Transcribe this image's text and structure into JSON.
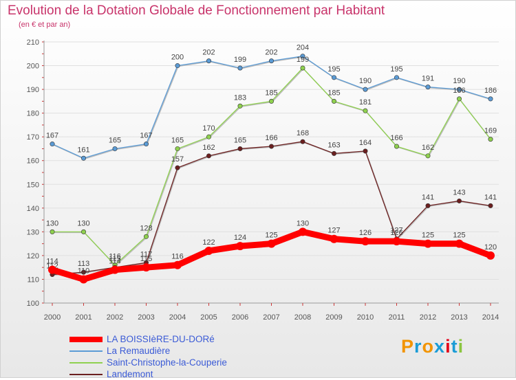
{
  "title": "Evolution de la Dotation Globale de Fonctionnement par Habitant",
  "subtitle": "(en € et par an)",
  "brand": {
    "letters": [
      "P",
      "r",
      "o",
      "x",
      "i",
      "t",
      "i"
    ],
    "colors": [
      "#f29400",
      "#1a9cd6",
      "#f29400",
      "#1a9cd6",
      "#e2001a",
      "#1a9cd6",
      "#8bc53f"
    ]
  },
  "chart_data": {
    "type": "line",
    "title": "Evolution de la Dotation Globale de Fonctionnement par Habitant",
    "ylabel": "(en € et par an)",
    "xlabel": "",
    "ylim": [
      100,
      210
    ],
    "yticks": [
      100,
      110,
      120,
      130,
      140,
      150,
      160,
      170,
      180,
      190,
      200,
      210
    ],
    "categories": [
      "2000",
      "2001",
      "2002",
      "2003",
      "2004",
      "2005",
      "2006",
      "2007",
      "2008",
      "2009",
      "2010",
      "2011",
      "2012",
      "2013",
      "2014"
    ],
    "series": [
      {
        "name": "LA BOISSIèRE-DU-DORé",
        "color": "#ff0000",
        "values": [
          114,
          110,
          114,
          115,
          116,
          122,
          124,
          125,
          130,
          127,
          126,
          126,
          125,
          125,
          120
        ]
      },
      {
        "name": "La Remaudière",
        "color": "#5b9bd5",
        "values": [
          167,
          161,
          165,
          167,
          200,
          202,
          199,
          202,
          204,
          195,
          190,
          195,
          191,
          190,
          186
        ]
      },
      {
        "name": "Saint-Christophe-la-Couperie",
        "color": "#8fd14f",
        "values": [
          130,
          130,
          116,
          128,
          165,
          170,
          183,
          185,
          199,
          185,
          181,
          166,
          162,
          186,
          169
        ]
      },
      {
        "name": "Landemont",
        "color": "#6b1f1f",
        "values": [
          112,
          113,
          115,
          117,
          157,
          162,
          165,
          166,
          168,
          163,
          164,
          127,
          141,
          143,
          141
        ]
      }
    ]
  }
}
